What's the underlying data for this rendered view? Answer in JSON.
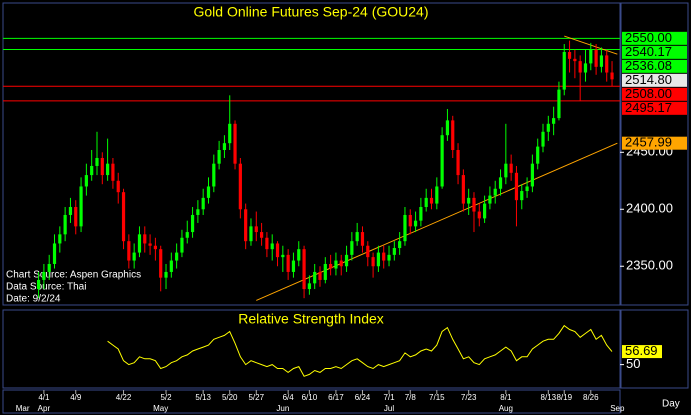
{
  "chart_data": [
    {
      "type": "candlestick",
      "title": "Gold Online Futures Sep-24 (GOU24)",
      "annotations": [
        "Chart Source: Aspen Graphics",
        "Data Source: Thai",
        "Date: 9/2/24"
      ],
      "x_label": "Day",
      "up_color": "#00ff00",
      "down_color": "#ff0000",
      "categories": [
        null,
        null,
        null,
        null,
        "4/1",
        null,
        null,
        null,
        null,
        null,
        "4/9",
        null,
        null,
        null,
        null,
        null,
        null,
        null,
        null,
        "4/22",
        null,
        null,
        null,
        null,
        null,
        null,
        null,
        "5/2",
        null,
        null,
        null,
        null,
        null,
        null,
        "5/13",
        null,
        null,
        null,
        null,
        "5/20",
        null,
        null,
        null,
        null,
        "5/27",
        null,
        null,
        null,
        null,
        null,
        "6/4",
        null,
        null,
        null,
        "6/10",
        null,
        null,
        null,
        null,
        "6/17",
        null,
        null,
        null,
        null,
        "6/24",
        null,
        null,
        null,
        null,
        "7/1",
        null,
        null,
        null,
        "7/8",
        null,
        null,
        null,
        null,
        "7/15",
        null,
        null,
        null,
        null,
        null,
        "7/23",
        null,
        null,
        null,
        null,
        null,
        null,
        "8/1",
        null,
        null,
        null,
        null,
        null,
        null,
        null,
        "8/13",
        null,
        null,
        "8/19",
        null,
        null,
        null,
        null,
        "8/26",
        null,
        null,
        null,
        null,
        null
      ],
      "months": [
        "Mar",
        null,
        null,
        null,
        "Apr",
        null,
        null,
        null,
        null,
        null,
        null,
        null,
        null,
        null,
        null,
        null,
        null,
        null,
        null,
        null,
        null,
        null,
        null,
        null,
        null,
        null,
        "May",
        null,
        null,
        null,
        null,
        null,
        null,
        null,
        null,
        null,
        null,
        null,
        null,
        null,
        null,
        null,
        null,
        null,
        null,
        null,
        null,
        null,
        null,
        "Jun",
        null,
        null,
        null,
        null,
        null,
        null,
        null,
        null,
        null,
        null,
        null,
        null,
        null,
        null,
        null,
        null,
        null,
        null,
        null,
        "Jul",
        null,
        null,
        null,
        null,
        null,
        null,
        null,
        null,
        null,
        null,
        null,
        null,
        null,
        null,
        null,
        null,
        null,
        null,
        null,
        null,
        null,
        "Aug",
        null,
        null,
        null,
        null,
        null,
        null,
        null,
        null,
        null,
        null,
        null,
        null,
        null,
        null,
        null,
        null,
        null,
        null,
        null,
        null,
        "Sep"
      ],
      "open": [
        null,
        null,
        null,
        2330,
        2338,
        2345,
        2352,
        2370,
        2378,
        2395,
        2402,
        2385,
        2420,
        2430,
        2438,
        2445,
        2430,
        2440,
        2425,
        2415,
        2372,
        2355,
        2362,
        2378,
        2370,
        2368,
        2365,
        2340,
        2345,
        2355,
        2362,
        2375,
        2380,
        2395,
        2400,
        2410,
        2420,
        2440,
        2452,
        2458,
        2475,
        2440,
        2400,
        2372,
        2385,
        2380,
        2375,
        2365,
        2370,
        2358,
        2360,
        2345,
        2355,
        2365,
        2330,
        2335,
        2345,
        2338,
        2352,
        2348,
        2355,
        2350,
        2360,
        2372,
        2380,
        2368,
        2358,
        2350,
        2362,
        2355,
        2360,
        2366,
        2372,
        2395,
        2385,
        2390,
        2402,
        2410,
        2405,
        2420,
        2465,
        2478,
        2452,
        2430,
        2405,
        2410,
        2398,
        2392,
        2405,
        2412,
        2418,
        2428,
        2440,
        2432,
        2408,
        2416,
        2420,
        2440,
        2455,
        2468,
        2475,
        2480,
        2505,
        2538,
        2532,
        2530,
        2520,
        2528,
        2540,
        2525,
        2535,
        2520,
        null
      ],
      "high": [
        null,
        null,
        null,
        2345,
        2352,
        2360,
        2378,
        2385,
        2402,
        2410,
        2408,
        2428,
        2440,
        2452,
        2468,
        2450,
        2462,
        2445,
        2432,
        2418,
        2378,
        2370,
        2385,
        2385,
        2378,
        2375,
        2368,
        2352,
        2362,
        2370,
        2382,
        2390,
        2402,
        2408,
        2418,
        2428,
        2448,
        2460,
        2465,
        2500,
        2478,
        2445,
        2405,
        2392,
        2398,
        2388,
        2380,
        2378,
        2372,
        2368,
        2365,
        2362,
        2372,
        2368,
        2342,
        2352,
        2350,
        2358,
        2360,
        2362,
        2360,
        2368,
        2380,
        2388,
        2385,
        2372,
        2362,
        2368,
        2368,
        2368,
        2372,
        2380,
        2402,
        2400,
        2398,
        2410,
        2418,
        2418,
        2428,
        2472,
        2488,
        2482,
        2458,
        2435,
        2418,
        2415,
        2405,
        2412,
        2420,
        2425,
        2435,
        2475,
        2448,
        2438,
        2422,
        2428,
        2448,
        2462,
        2475,
        2482,
        2490,
        2512,
        2545,
        2548,
        2540,
        2535,
        2540,
        2546,
        2545,
        2542,
        2540,
        2530,
        null
      ],
      "low": [
        null,
        null,
        null,
        2322,
        2330,
        2338,
        2348,
        2362,
        2372,
        2388,
        2378,
        2380,
        2412,
        2425,
        2430,
        2422,
        2425,
        2418,
        2405,
        2365,
        2348,
        2348,
        2358,
        2362,
        2360,
        2355,
        2328,
        2330,
        2340,
        2348,
        2358,
        2370,
        2375,
        2388,
        2395,
        2405,
        2415,
        2435,
        2445,
        2452,
        2435,
        2392,
        2365,
        2368,
        2372,
        2368,
        2358,
        2355,
        2350,
        2345,
        2338,
        2340,
        2350,
        2322,
        2325,
        2330,
        2332,
        2335,
        2342,
        2342,
        2342,
        2345,
        2355,
        2368,
        2362,
        2350,
        2340,
        2345,
        2348,
        2350,
        2355,
        2360,
        2368,
        2378,
        2380,
        2385,
        2398,
        2400,
        2400,
        2418,
        2460,
        2445,
        2422,
        2398,
        2395,
        2380,
        2385,
        2388,
        2400,
        2405,
        2412,
        2422,
        2425,
        2385,
        2400,
        2410,
        2415,
        2435,
        2450,
        2460,
        2465,
        2478,
        2500,
        2520,
        2515,
        2495,
        2512,
        2522,
        2518,
        2520,
        2512,
        2508,
        null
      ],
      "close": [
        null,
        null,
        null,
        2338,
        2345,
        2352,
        2370,
        2378,
        2395,
        2402,
        2385,
        2420,
        2430,
        2438,
        2445,
        2430,
        2440,
        2425,
        2415,
        2372,
        2355,
        2362,
        2378,
        2370,
        2368,
        2365,
        2340,
        2345,
        2355,
        2362,
        2375,
        2380,
        2395,
        2400,
        2410,
        2420,
        2440,
        2452,
        2458,
        2475,
        2440,
        2400,
        2372,
        2385,
        2380,
        2375,
        2365,
        2370,
        2358,
        2360,
        2345,
        2355,
        2365,
        2330,
        2335,
        2345,
        2338,
        2352,
        2348,
        2355,
        2350,
        2360,
        2372,
        2380,
        2368,
        2358,
        2350,
        2362,
        2355,
        2360,
        2366,
        2372,
        2395,
        2385,
        2390,
        2402,
        2410,
        2405,
        2420,
        2465,
        2478,
        2452,
        2430,
        2405,
        2410,
        2398,
        2392,
        2405,
        2412,
        2418,
        2428,
        2440,
        2432,
        2408,
        2416,
        2420,
        2440,
        2455,
        2468,
        2475,
        2480,
        2505,
        2538,
        2532,
        2530,
        2520,
        2528,
        2540,
        2525,
        2535,
        2520,
        2514,
        null
      ],
      "ylim": [
        2316,
        2581
      ],
      "yticks": [
        {
          "value": 2350,
          "label": "2350.00"
        },
        {
          "value": 2400,
          "label": "2400.00"
        },
        {
          "value": 2450,
          "label": "2450.00"
        }
      ],
      "levels": [
        {
          "value": 2550,
          "label": "2550.00",
          "color": "#00ff00",
          "line": true
        },
        {
          "value": 2540.17,
          "label": "2540.17",
          "color": "#00ff00",
          "line": true
        },
        {
          "value": 2536.08,
          "label": "2536.08",
          "color": "#00ff00",
          "line": false
        },
        {
          "value": 2514.8,
          "label": "2514.80",
          "color": "#e8e8e8",
          "line": false
        },
        {
          "value": 2508,
          "label": "2508.00",
          "color": "#ff0000",
          "line": true
        },
        {
          "value": 2495.17,
          "label": "2495.17",
          "color": "#ff0000",
          "line": true
        },
        {
          "value": 2457.99,
          "label": "2457.99",
          "color": "#ffa500",
          "line": false
        }
      ],
      "trendlines": [
        {
          "x": [
            44,
            112
          ],
          "y": [
            2320,
            2457.99
          ],
          "color": "#ffa500"
        },
        {
          "x": [
            102,
            112
          ],
          "y": [
            2552,
            2536.08
          ],
          "color": "#ffa500"
        }
      ]
    },
    {
      "type": "line",
      "title": "Relative Strength Index",
      "color": "#ffff00",
      "values": [
        null,
        null,
        null,
        null,
        null,
        null,
        null,
        null,
        null,
        null,
        null,
        null,
        null,
        null,
        null,
        null,
        62,
        60,
        58,
        52,
        50,
        51,
        54,
        53,
        53,
        52,
        48,
        49,
        51,
        52,
        54,
        55,
        57,
        58,
        59,
        60,
        63,
        64,
        65,
        67,
        61,
        54,
        50,
        52,
        51,
        50,
        49,
        50,
        48,
        48,
        46,
        48,
        49,
        44,
        45,
        47,
        46,
        48,
        48,
        49,
        48,
        50,
        52,
        53,
        51,
        49,
        48,
        50,
        49,
        50,
        51,
        52,
        56,
        54,
        55,
        57,
        58,
        57,
        60,
        67,
        69,
        63,
        58,
        53,
        54,
        51,
        50,
        53,
        54,
        55,
        57,
        59,
        57,
        52,
        54,
        54,
        58,
        60,
        62,
        63,
        63,
        66,
        70,
        68,
        67,
        64,
        66,
        68,
        63,
        65,
        60,
        56.69,
        null
      ],
      "ylim": [
        38,
        77
      ],
      "yticks": [
        50
      ]
    }
  ]
}
